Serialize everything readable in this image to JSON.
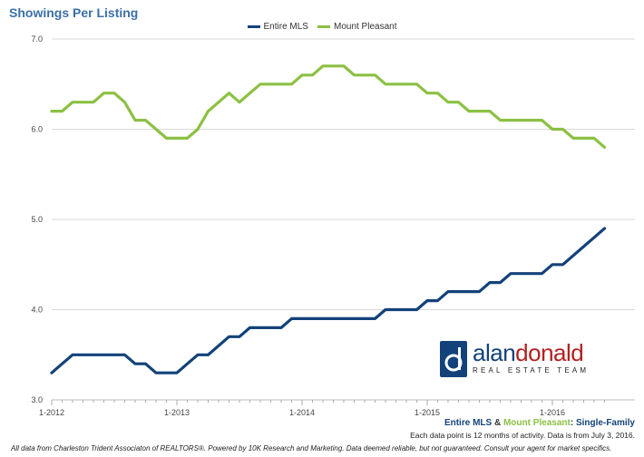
{
  "chart_data": {
    "type": "line",
    "title": "Showings Per Listing",
    "ylim": [
      3.0,
      7.0
    ],
    "yticks": [
      "3.0",
      "4.0",
      "5.0",
      "6.0",
      "7.0"
    ],
    "xticks": [
      "1-2012",
      "1-2013",
      "1-2014",
      "1-2015",
      "1-2016"
    ],
    "x": [
      "2012-01",
      "2012-02",
      "2012-03",
      "2012-04",
      "2012-05",
      "2012-06",
      "2012-07",
      "2012-08",
      "2012-09",
      "2012-10",
      "2012-11",
      "2012-12",
      "2013-01",
      "2013-02",
      "2013-03",
      "2013-04",
      "2013-05",
      "2013-06",
      "2013-07",
      "2013-08",
      "2013-09",
      "2013-10",
      "2013-11",
      "2013-12",
      "2014-01",
      "2014-02",
      "2014-03",
      "2014-04",
      "2014-05",
      "2014-06",
      "2014-07",
      "2014-08",
      "2014-09",
      "2014-10",
      "2014-11",
      "2014-12",
      "2015-01",
      "2015-02",
      "2015-03",
      "2015-04",
      "2015-05",
      "2015-06",
      "2015-07",
      "2015-08",
      "2015-09",
      "2015-10",
      "2015-11",
      "2015-12",
      "2016-01",
      "2016-02",
      "2016-03",
      "2016-04",
      "2016-05",
      "2016-06"
    ],
    "series": [
      {
        "name": "Entire MLS",
        "color": "#13427a",
        "values": [
          3.3,
          3.4,
          3.5,
          3.5,
          3.5,
          3.5,
          3.5,
          3.5,
          3.4,
          3.4,
          3.3,
          3.3,
          3.3,
          3.4,
          3.5,
          3.5,
          3.6,
          3.7,
          3.7,
          3.8,
          3.8,
          3.8,
          3.8,
          3.9,
          3.9,
          3.9,
          3.9,
          3.9,
          3.9,
          3.9,
          3.9,
          3.9,
          4.0,
          4.0,
          4.0,
          4.0,
          4.1,
          4.1,
          4.2,
          4.2,
          4.2,
          4.2,
          4.3,
          4.3,
          4.4,
          4.4,
          4.4,
          4.4,
          4.5,
          4.5,
          4.6,
          4.7,
          4.8,
          4.9
        ]
      },
      {
        "name": "Mount Pleasant",
        "color": "#8cc043",
        "values": [
          6.2,
          6.2,
          6.3,
          6.3,
          6.3,
          6.4,
          6.4,
          6.3,
          6.1,
          6.1,
          6.0,
          5.9,
          5.9,
          5.9,
          6.0,
          6.2,
          6.3,
          6.4,
          6.3,
          6.4,
          6.5,
          6.5,
          6.5,
          6.5,
          6.6,
          6.6,
          6.7,
          6.7,
          6.7,
          6.6,
          6.6,
          6.6,
          6.5,
          6.5,
          6.5,
          6.5,
          6.4,
          6.4,
          6.3,
          6.3,
          6.2,
          6.2,
          6.2,
          6.1,
          6.1,
          6.1,
          6.1,
          6.1,
          6.0,
          6.0,
          5.9,
          5.9,
          5.9,
          5.8
        ]
      }
    ],
    "grid": true,
    "legend": "top-center"
  },
  "notes": {
    "series_entire": "Entire MLS",
    "amp": " & ",
    "series_mp": "Mount Pleasant",
    "suffix": ": Single-Family",
    "info": "Each data point is 12 months of activity. Data is from July 3, 2016."
  },
  "footer": "All data from Charleston Trident Associaton of REALTORS®. Powered by 10K Research and Marketing. Data deemed reliable, but not guaranteed. Consult your agent for market specifics.",
  "logo": {
    "name_part1": "alan",
    "name_part2": "donald",
    "tagline": "REAL ESTATE TEAM",
    "colors": {
      "navy": "#13427a",
      "red": "#b32020"
    }
  }
}
